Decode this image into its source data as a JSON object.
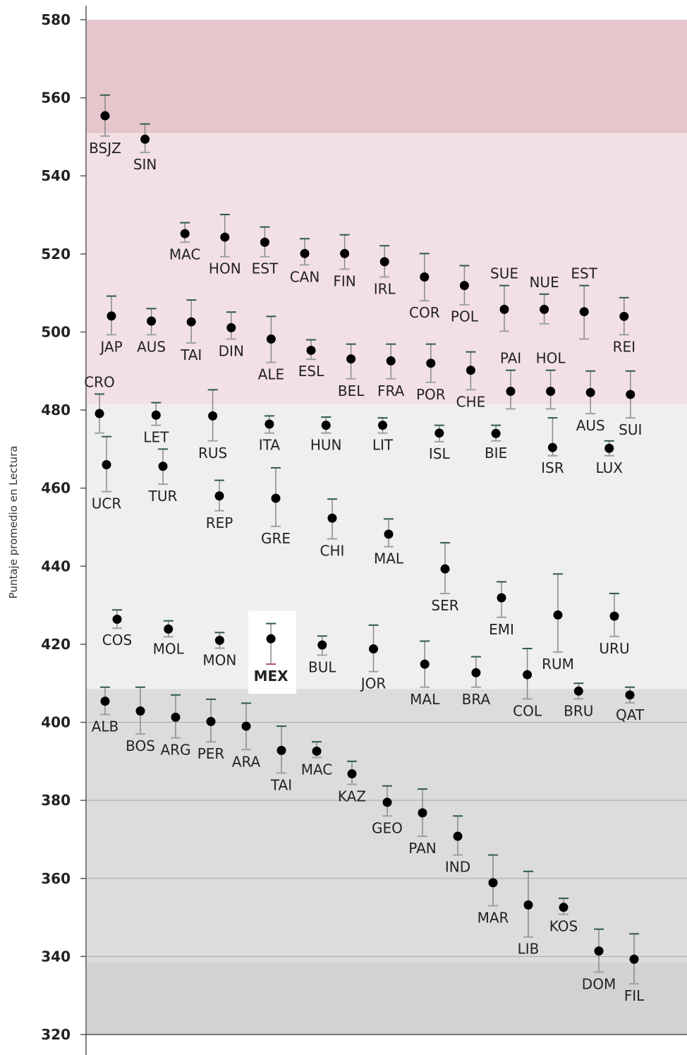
{
  "chart_data": {
    "type": "scatter",
    "ylabel": "Puntaje promedio en Lectura",
    "ylim": [
      320,
      580
    ],
    "yticks": [
      320,
      340,
      360,
      380,
      400,
      420,
      440,
      460,
      480,
      500,
      520,
      540,
      560,
      580
    ],
    "bands": [
      {
        "from": 320,
        "to": 338.5,
        "color": "#d2d2d2"
      },
      {
        "from": 338.5,
        "to": 408.5,
        "color": "#dcdcdc"
      },
      {
        "from": 408.5,
        "to": 481.5,
        "color": "#efefef"
      },
      {
        "from": 481.5,
        "to": 551,
        "color": "#f2e0e4"
      },
      {
        "from": 551,
        "to": 580,
        "color": "#e6c5cd"
      }
    ],
    "gridlines": [
      340,
      360,
      380,
      400
    ],
    "colors": {
      "point": "#000000",
      "whisker": "#888888",
      "cap_upper": "#2f5a4a",
      "cap_lower": "#9aa4a0",
      "cap_highlight": "#b05070",
      "highlight_box": "#ffffff"
    },
    "highlight": "MEX",
    "series": [
      {
        "rows": [
          {
            "label": "BSJZ",
            "slot": 0,
            "value": 555.4,
            "upper": 560.7,
            "lower": 550.2,
            "label_pos": "below"
          },
          {
            "label": "SIN",
            "slot": 1,
            "value": 549.4,
            "upper": 553.3,
            "lower": 546.0,
            "label_pos": "below"
          },
          {
            "label": "MAC",
            "slot": 2,
            "value": 525.2,
            "upper": 528.0,
            "lower": 523.0,
            "label_pos": "below"
          },
          {
            "label": "HON",
            "slot": 3,
            "value": 524.3,
            "upper": 530.1,
            "lower": 519.3,
            "label_pos": "below"
          },
          {
            "label": "EST",
            "slot": 4,
            "value": 523.0,
            "upper": 526.9,
            "lower": 519.3,
            "label_pos": "below"
          },
          {
            "label": "CAN",
            "slot": 5,
            "value": 520.1,
            "upper": 523.9,
            "lower": 517.2,
            "label_pos": "below"
          },
          {
            "label": "FIN",
            "slot": 6,
            "value": 520.1,
            "upper": 524.9,
            "lower": 516.1,
            "label_pos": "below"
          },
          {
            "label": "IRL",
            "slot": 7,
            "value": 518.0,
            "upper": 522.1,
            "lower": 514.1,
            "label_pos": "below"
          },
          {
            "label": "COR",
            "slot": 8,
            "value": 514.1,
            "upper": 520.1,
            "lower": 508.0,
            "label_pos": "below"
          },
          {
            "label": "POL",
            "slot": 9,
            "value": 511.9,
            "upper": 517.0,
            "lower": 507.0,
            "label_pos": "below"
          },
          {
            "label": "SUE",
            "slot": 10,
            "value": 505.8,
            "upper": 511.9,
            "lower": 500.2,
            "label_pos": "above"
          },
          {
            "label": "NUE",
            "slot": 11,
            "value": 505.8,
            "upper": 509.7,
            "lower": 502.1,
            "label_pos": "above"
          },
          {
            "label": "EST",
            "slot": 12,
            "value": 505.2,
            "upper": 511.9,
            "lower": 498.2,
            "label_pos": "above"
          },
          {
            "label": "REI",
            "slot": 13,
            "value": 504.0,
            "upper": 508.8,
            "lower": 499.3,
            "label_pos": "below"
          }
        ]
      },
      {
        "rows": [
          {
            "label": "JAP",
            "slot": 0,
            "value": 504.1,
            "upper": 509.2,
            "lower": 499.3,
            "label_pos": "below"
          },
          {
            "label": "AUS",
            "slot": 1,
            "value": 502.8,
            "upper": 506.0,
            "lower": 499.3,
            "label_pos": "below"
          },
          {
            "label": "TAI",
            "slot": 2,
            "value": 502.6,
            "upper": 508.2,
            "lower": 497.2,
            "label_pos": "below"
          },
          {
            "label": "DIN",
            "slot": 3,
            "value": 501.1,
            "upper": 505.1,
            "lower": 498.2,
            "label_pos": "below"
          },
          {
            "label": "ALE",
            "slot": 4,
            "value": 498.2,
            "upper": 504.0,
            "lower": 492.2,
            "label_pos": "below"
          },
          {
            "label": "ESL",
            "slot": 5,
            "value": 495.3,
            "upper": 498.0,
            "lower": 493.0,
            "label_pos": "below"
          },
          {
            "label": "BEL",
            "slot": 6,
            "value": 493.1,
            "upper": 496.9,
            "lower": 488.0,
            "label_pos": "below"
          },
          {
            "label": "FRA",
            "slot": 7,
            "value": 492.6,
            "upper": 496.9,
            "lower": 488.0,
            "label_pos": "below"
          },
          {
            "label": "POR",
            "slot": 8,
            "value": 492.0,
            "upper": 496.9,
            "lower": 487.1,
            "label_pos": "below"
          },
          {
            "label": "CHE",
            "slot": 9,
            "value": 490.2,
            "upper": 494.9,
            "lower": 485.2,
            "label_pos": "below"
          },
          {
            "label": "PAI",
            "slot": 10,
            "value": 484.8,
            "upper": 490.2,
            "lower": 480.3,
            "label_pos": "above"
          },
          {
            "label": "HOL",
            "slot": 11,
            "value": 484.8,
            "upper": 490.2,
            "lower": 480.3,
            "label_pos": "above"
          },
          {
            "label": "AUS",
            "slot": 12,
            "value": 484.5,
            "upper": 490.0,
            "lower": 479.1,
            "label_pos": "below"
          },
          {
            "label": "SUI",
            "slot": 13,
            "value": 484.0,
            "upper": 490.0,
            "lower": 478.0,
            "label_pos": "below"
          }
        ]
      },
      {
        "rows": [
          {
            "label": "CRO",
            "slot": 0,
            "value": 479.1,
            "upper": 484.1,
            "lower": 474.1,
            "label_pos": "above"
          },
          {
            "label": "LET",
            "slot": 1,
            "value": 478.7,
            "upper": 481.9,
            "lower": 476.1,
            "label_pos": "below"
          },
          {
            "label": "RUS",
            "slot": 2,
            "value": 478.5,
            "upper": 485.2,
            "lower": 472.1,
            "label_pos": "below"
          },
          {
            "label": "ITA",
            "slot": 3,
            "value": 476.4,
            "upper": 478.5,
            "lower": 474.1,
            "label_pos": "below"
          },
          {
            "label": "HUN",
            "slot": 4,
            "value": 476.1,
            "upper": 478.2,
            "lower": 474.1,
            "label_pos": "below"
          },
          {
            "label": "LIT",
            "slot": 5,
            "value": 476.1,
            "upper": 478.0,
            "lower": 474.1,
            "label_pos": "below"
          },
          {
            "label": "ISL",
            "slot": 6,
            "value": 474.1,
            "upper": 476.1,
            "lower": 471.9,
            "label_pos": "below"
          },
          {
            "label": "BIE",
            "slot": 7,
            "value": 474.0,
            "upper": 476.1,
            "lower": 472.1,
            "label_pos": "below"
          },
          {
            "label": "ISR",
            "slot": 8,
            "value": 470.4,
            "upper": 478.0,
            "lower": 468.3,
            "label_pos": "below"
          },
          {
            "label": "LUX",
            "slot": 9,
            "value": 470.2,
            "upper": 472.1,
            "lower": 468.3,
            "label_pos": "below"
          }
        ]
      },
      {
        "rows": [
          {
            "label": "UCR",
            "slot": 0,
            "value": 466.0,
            "upper": 473.2,
            "lower": 459.1,
            "label_pos": "below"
          },
          {
            "label": "TUR",
            "slot": 1,
            "value": 465.6,
            "upper": 470.0,
            "lower": 461.0,
            "label_pos": "below"
          },
          {
            "label": "REP",
            "slot": 2,
            "value": 458.0,
            "upper": 462.0,
            "lower": 454.2,
            "label_pos": "below"
          },
          {
            "label": "GRE",
            "slot": 3,
            "value": 457.4,
            "upper": 465.2,
            "lower": 450.2,
            "label_pos": "below"
          },
          {
            "label": "CHI",
            "slot": 4,
            "value": 452.3,
            "upper": 457.2,
            "lower": 447.0,
            "label_pos": "below"
          },
          {
            "label": "MAL",
            "slot": 5,
            "value": 448.2,
            "upper": 452.1,
            "lower": 445.0,
            "label_pos": "below"
          },
          {
            "label": "SER",
            "slot": 6,
            "value": 439.3,
            "upper": 446.0,
            "lower": 433.0,
            "label_pos": "below"
          },
          {
            "label": "EMI",
            "slot": 7,
            "value": 431.9,
            "upper": 436.0,
            "lower": 426.9,
            "label_pos": "below"
          },
          {
            "label": "RUM",
            "slot": 8,
            "value": 427.5,
            "upper": 438.0,
            "lower": 418.0,
            "label_pos": "below"
          },
          {
            "label": "URU",
            "slot": 9,
            "value": 427.2,
            "upper": 433.0,
            "lower": 422.0,
            "label_pos": "below"
          }
        ]
      },
      {
        "rows": [
          {
            "label": "COS",
            "slot": 0,
            "value": 426.4,
            "upper": 428.8,
            "lower": 424.1,
            "label_pos": "below"
          },
          {
            "label": "MOL",
            "slot": 1,
            "value": 423.9,
            "upper": 426.0,
            "lower": 421.9,
            "label_pos": "below"
          },
          {
            "label": "MON",
            "slot": 2,
            "value": 421.0,
            "upper": 423.0,
            "lower": 419.0,
            "label_pos": "below"
          },
          {
            "label": "MEX",
            "slot": 3,
            "value": 421.4,
            "upper": 425.3,
            "lower": 414.9,
            "label_pos": "below"
          },
          {
            "label": "BUL",
            "slot": 4,
            "value": 419.8,
            "upper": 422.1,
            "lower": 417.2,
            "label_pos": "below"
          },
          {
            "label": "JOR",
            "slot": 5,
            "value": 418.8,
            "upper": 424.9,
            "lower": 413.0,
            "label_pos": "below"
          },
          {
            "label": "MAL",
            "slot": 6,
            "value": 414.9,
            "upper": 420.8,
            "lower": 409.0,
            "label_pos": "below"
          },
          {
            "label": "BRA",
            "slot": 7,
            "value": 412.7,
            "upper": 416.8,
            "lower": 409.0,
            "label_pos": "below"
          },
          {
            "label": "COL",
            "slot": 8,
            "value": 412.2,
            "upper": 418.9,
            "lower": 406.0,
            "label_pos": "below"
          },
          {
            "label": "BRU",
            "slot": 9,
            "value": 408.0,
            "upper": 410.0,
            "lower": 406.0,
            "label_pos": "below"
          },
          {
            "label": "QAT",
            "slot": 10,
            "value": 407.0,
            "upper": 409.0,
            "lower": 405.0,
            "label_pos": "below"
          }
        ]
      },
      {
        "rows": [
          {
            "label": "ALB",
            "slot": 0,
            "value": 405.4,
            "upper": 409.0,
            "lower": 402.0,
            "label_pos": "below"
          },
          {
            "label": "BOS",
            "slot": 1,
            "value": 402.9,
            "upper": 409.0,
            "lower": 397.0,
            "label_pos": "below"
          },
          {
            "label": "ARG",
            "slot": 2,
            "value": 401.3,
            "upper": 407.0,
            "lower": 396.0,
            "label_pos": "below"
          },
          {
            "label": "PER",
            "slot": 3,
            "value": 400.2,
            "upper": 405.9,
            "lower": 395.0,
            "label_pos": "below"
          },
          {
            "label": "ARA",
            "slot": 4,
            "value": 399.0,
            "upper": 404.9,
            "lower": 393.0,
            "label_pos": "below"
          },
          {
            "label": "TAI",
            "slot": 5,
            "value": 392.8,
            "upper": 399.0,
            "lower": 387.0,
            "label_pos": "below"
          },
          {
            "label": "MAC",
            "slot": 6,
            "value": 392.6,
            "upper": 395.0,
            "lower": 391.0,
            "label_pos": "below"
          },
          {
            "label": "KAZ",
            "slot": 7,
            "value": 386.8,
            "upper": 390.0,
            "lower": 384.1,
            "label_pos": "below"
          },
          {
            "label": "GEO",
            "slot": 8,
            "value": 379.5,
            "upper": 383.7,
            "lower": 376.0,
            "label_pos": "below"
          },
          {
            "label": "PAN",
            "slot": 9,
            "value": 376.8,
            "upper": 382.9,
            "lower": 370.8,
            "label_pos": "below"
          },
          {
            "label": "IND",
            "slot": 10,
            "value": 370.8,
            "upper": 376.0,
            "lower": 366.0,
            "label_pos": "below"
          },
          {
            "label": "MAR",
            "slot": 11,
            "value": 358.9,
            "upper": 366.0,
            "lower": 353.0,
            "label_pos": "below"
          },
          {
            "label": "LIB",
            "slot": 12,
            "value": 353.2,
            "upper": 361.8,
            "lower": 345.0,
            "label_pos": "below"
          },
          {
            "label": "KOS",
            "slot": 13,
            "value": 352.6,
            "upper": 354.9,
            "lower": 350.8,
            "label_pos": "below"
          },
          {
            "label": "DOM",
            "slot": 14,
            "value": 341.4,
            "upper": 347.0,
            "lower": 336.0,
            "label_pos": "below"
          },
          {
            "label": "FIL",
            "slot": 15,
            "value": 339.3,
            "upper": 345.8,
            "lower": 333.0,
            "label_pos": "below"
          }
        ]
      }
    ]
  }
}
